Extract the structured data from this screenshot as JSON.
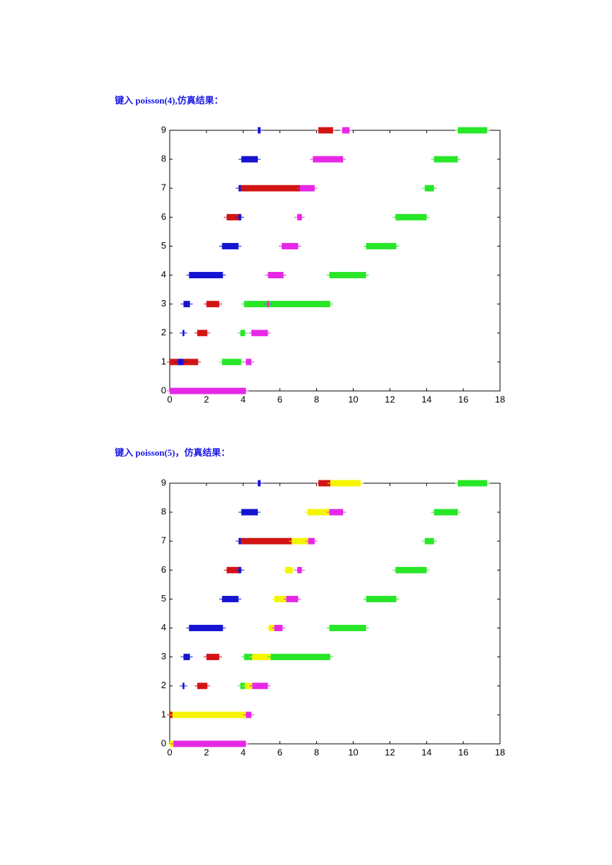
{
  "chart_data": [
    {
      "type": "gantt",
      "title": "键入 poisson(4),仿真结果：",
      "xlim": [
        0,
        18
      ],
      "xticks": [
        0,
        2,
        4,
        6,
        8,
        10,
        12,
        14,
        16,
        18
      ],
      "ylim": [
        0,
        9
      ],
      "yticks": [
        0,
        1,
        2,
        3,
        4,
        5,
        6,
        7,
        8,
        9
      ],
      "tasks": [
        {
          "row": 9,
          "start": 4.8,
          "end": 4.95,
          "color": "#1414d2"
        },
        {
          "row": 9,
          "start": 8.1,
          "end": 8.9,
          "color": "#d21414"
        },
        {
          "row": 9,
          "start": 9.4,
          "end": 9.8,
          "color": "#e628e6"
        },
        {
          "row": 9,
          "start": 15.7,
          "end": 17.3,
          "color": "#28e628"
        },
        {
          "row": 8,
          "start": 3.9,
          "end": 4.8,
          "color": "#1414d2"
        },
        {
          "row": 8,
          "start": 7.8,
          "end": 9.45,
          "color": "#e628e6"
        },
        {
          "row": 8,
          "start": 14.4,
          "end": 15.7,
          "color": "#28e628"
        },
        {
          "row": 7,
          "start": 3.75,
          "end": 3.9,
          "color": "#1414d2"
        },
        {
          "row": 7,
          "start": 3.9,
          "end": 7.1,
          "color": "#d21414"
        },
        {
          "row": 7,
          "start": 7.1,
          "end": 7.9,
          "color": "#e628e6"
        },
        {
          "row": 7,
          "start": 13.9,
          "end": 14.4,
          "color": "#28e628"
        },
        {
          "row": 6,
          "start": 3.1,
          "end": 3.8,
          "color": "#d21414"
        },
        {
          "row": 6,
          "start": 3.75,
          "end": 3.9,
          "color": "#1414d2"
        },
        {
          "row": 6,
          "start": 6.95,
          "end": 7.2,
          "color": "#e628e6"
        },
        {
          "row": 6,
          "start": 12.3,
          "end": 14.0,
          "color": "#28e628"
        },
        {
          "row": 5,
          "start": 2.85,
          "end": 3.75,
          "color": "#1414d2"
        },
        {
          "row": 5,
          "start": 6.1,
          "end": 7.0,
          "color": "#e628e6"
        },
        {
          "row": 5,
          "start": 10.7,
          "end": 12.35,
          "color": "#28e628"
        },
        {
          "row": 4,
          "start": 1.05,
          "end": 2.9,
          "color": "#1414d2"
        },
        {
          "row": 4,
          "start": 5.35,
          "end": 6.2,
          "color": "#e628e6"
        },
        {
          "row": 4,
          "start": 8.7,
          "end": 10.7,
          "color": "#28e628"
        },
        {
          "row": 3,
          "start": 0.75,
          "end": 1.1,
          "color": "#1414d2"
        },
        {
          "row": 3,
          "start": 2.0,
          "end": 2.7,
          "color": "#d21414"
        },
        {
          "row": 3,
          "start": 4.05,
          "end": 8.75,
          "color": "#28e628"
        },
        {
          "row": 3,
          "start": 5.3,
          "end": 5.4,
          "color": "#e628e6"
        },
        {
          "row": 2,
          "start": 0.7,
          "end": 0.8,
          "color": "#1414d2"
        },
        {
          "row": 2,
          "start": 1.5,
          "end": 2.05,
          "color": "#d21414"
        },
        {
          "row": 2,
          "start": 3.85,
          "end": 4.1,
          "color": "#28e628"
        },
        {
          "row": 2,
          "start": 4.45,
          "end": 5.35,
          "color": "#e628e6"
        },
        {
          "row": 1,
          "start": 0,
          "end": 1.55,
          "color": "#d21414"
        },
        {
          "row": 1,
          "start": 0.45,
          "end": 0.75,
          "color": "#1414d2"
        },
        {
          "row": 1,
          "start": 2.85,
          "end": 3.9,
          "color": "#28e628"
        },
        {
          "row": 1,
          "start": 4.15,
          "end": 4.45,
          "color": "#e628e6"
        },
        {
          "row": 0,
          "start": 0,
          "end": 4.15,
          "color": "#e628e6"
        }
      ]
    },
    {
      "type": "gantt",
      "title": "键入 poisson(5)，仿真结果：",
      "xlim": [
        0,
        18
      ],
      "xticks": [
        0,
        2,
        4,
        6,
        8,
        10,
        12,
        14,
        16,
        18
      ],
      "ylim": [
        0,
        9
      ],
      "yticks": [
        0,
        1,
        2,
        3,
        4,
        5,
        6,
        7,
        8,
        9
      ],
      "tasks": [
        {
          "row": 9,
          "start": 4.8,
          "end": 4.95,
          "color": "#1414d2"
        },
        {
          "row": 9,
          "start": 8.1,
          "end": 8.75,
          "color": "#d21414"
        },
        {
          "row": 9,
          "start": 8.75,
          "end": 10.4,
          "color": "#f5f500"
        },
        {
          "row": 9,
          "start": 15.7,
          "end": 17.3,
          "color": "#28e628"
        },
        {
          "row": 8,
          "start": 3.9,
          "end": 4.8,
          "color": "#1414d2"
        },
        {
          "row": 8,
          "start": 7.5,
          "end": 8.7,
          "color": "#f5f500"
        },
        {
          "row": 8,
          "start": 8.7,
          "end": 9.45,
          "color": "#e628e6"
        },
        {
          "row": 8,
          "start": 14.4,
          "end": 15.7,
          "color": "#28e628"
        },
        {
          "row": 7,
          "start": 3.75,
          "end": 3.9,
          "color": "#1414d2"
        },
        {
          "row": 7,
          "start": 3.9,
          "end": 6.65,
          "color": "#d21414"
        },
        {
          "row": 7,
          "start": 6.65,
          "end": 7.55,
          "color": "#f5f500"
        },
        {
          "row": 7,
          "start": 7.55,
          "end": 7.9,
          "color": "#e628e6"
        },
        {
          "row": 7,
          "start": 13.9,
          "end": 14.4,
          "color": "#28e628"
        },
        {
          "row": 6,
          "start": 3.1,
          "end": 3.8,
          "color": "#d21414"
        },
        {
          "row": 6,
          "start": 3.75,
          "end": 3.9,
          "color": "#1414d2"
        },
        {
          "row": 6,
          "start": 6.3,
          "end": 6.7,
          "color": "#f5f500"
        },
        {
          "row": 6,
          "start": 6.95,
          "end": 7.2,
          "color": "#e628e6"
        },
        {
          "row": 6,
          "start": 12.3,
          "end": 14.0,
          "color": "#28e628"
        },
        {
          "row": 5,
          "start": 2.85,
          "end": 3.75,
          "color": "#1414d2"
        },
        {
          "row": 5,
          "start": 5.7,
          "end": 6.35,
          "color": "#f5f500"
        },
        {
          "row": 5,
          "start": 6.35,
          "end": 7.0,
          "color": "#e628e6"
        },
        {
          "row": 5,
          "start": 10.7,
          "end": 12.35,
          "color": "#28e628"
        },
        {
          "row": 4,
          "start": 1.05,
          "end": 2.9,
          "color": "#1414d2"
        },
        {
          "row": 4,
          "start": 5.4,
          "end": 5.7,
          "color": "#f5f500"
        },
        {
          "row": 4,
          "start": 5.7,
          "end": 6.15,
          "color": "#e628e6"
        },
        {
          "row": 4,
          "start": 8.7,
          "end": 10.7,
          "color": "#28e628"
        },
        {
          "row": 3,
          "start": 0.75,
          "end": 1.1,
          "color": "#1414d2"
        },
        {
          "row": 3,
          "start": 2.0,
          "end": 2.7,
          "color": "#d21414"
        },
        {
          "row": 3,
          "start": 4.05,
          "end": 4.5,
          "color": "#28e628"
        },
        {
          "row": 3,
          "start": 4.5,
          "end": 5.5,
          "color": "#f5f500"
        },
        {
          "row": 3,
          "start": 5.5,
          "end": 8.75,
          "color": "#28e628"
        },
        {
          "row": 2,
          "start": 0.7,
          "end": 0.8,
          "color": "#1414d2"
        },
        {
          "row": 2,
          "start": 1.5,
          "end": 2.05,
          "color": "#d21414"
        },
        {
          "row": 2,
          "start": 3.85,
          "end": 4.1,
          "color": "#28e628"
        },
        {
          "row": 2,
          "start": 4.1,
          "end": 4.5,
          "color": "#f5f500"
        },
        {
          "row": 2,
          "start": 4.5,
          "end": 5.35,
          "color": "#e628e6"
        },
        {
          "row": 1,
          "start": 0,
          "end": 0.15,
          "color": "#d21414"
        },
        {
          "row": 1,
          "start": 0.15,
          "end": 4.15,
          "color": "#f5f500"
        },
        {
          "row": 1,
          "start": 4.15,
          "end": 4.45,
          "color": "#e628e6"
        },
        {
          "row": 0,
          "start": 0,
          "end": 0.2,
          "color": "#f5f500"
        },
        {
          "row": 0,
          "start": 0.2,
          "end": 4.15,
          "color": "#e628e6"
        }
      ]
    }
  ]
}
